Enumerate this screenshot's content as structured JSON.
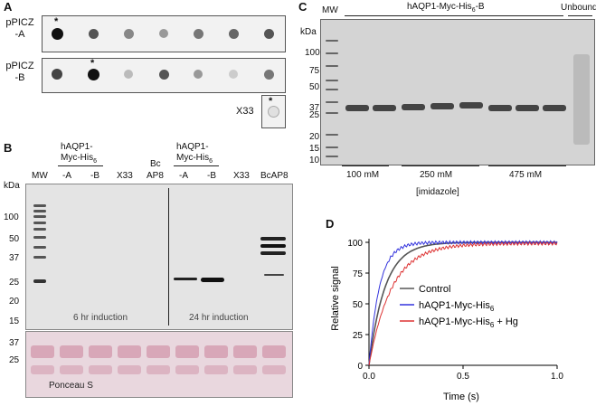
{
  "panels": {
    "a": "A",
    "b": "B",
    "c": "C",
    "d": "D"
  },
  "panel_a": {
    "row_a_label_1": "pPICZ",
    "row_a_label_2": "-A",
    "row_b_label_1": "pPICZ",
    "row_b_label_2": "-B",
    "control_label": "X33",
    "asterisk": "*"
  },
  "panel_b": {
    "kda": "kDa",
    "mw": "MW",
    "group1_line1": "hAQP1-",
    "group1_line2": "Myc-His",
    "group1_sub": "6",
    "group2_line1": "hAQP1-",
    "group2_line2": "Myc-His",
    "group2_sub": "6",
    "lanes": [
      "-A",
      "-B",
      "X33",
      "Bc",
      "AP8",
      "-A",
      "-B",
      "X33",
      "BcAP8"
    ],
    "markers": [
      "100",
      "50",
      "37",
      "25",
      "20",
      "15"
    ],
    "induction_6": "6 hr induction",
    "induction_24": "24 hr induction",
    "ponceau_markers": [
      "37",
      "25"
    ],
    "ponceau_label": "Ponceau S"
  },
  "panel_c": {
    "mw": "MW",
    "kda": "kDa",
    "title": "hAQP1-Myc-His",
    "title_sub": "6",
    "title_suffix": "-B",
    "unbound": "Unbound",
    "markers": [
      "100",
      "75",
      "50",
      "37",
      "25",
      "20",
      "15",
      "10"
    ],
    "conc": [
      "100 mM",
      "250 mM",
      "475 mM"
    ],
    "imidazole": "[imidazole]"
  },
  "chart_data": {
    "type": "line",
    "xlabel": "Time (s)",
    "ylabel": "Relative signal",
    "xlim": [
      0,
      1.0
    ],
    "ylim": [
      0,
      100
    ],
    "xticks": [
      "0.0",
      "0.5",
      "1.0"
    ],
    "yticks": [
      "0",
      "25",
      "50",
      "75",
      "100"
    ],
    "legend_position": "center-right",
    "series": [
      {
        "name": "Control",
        "color": "#555555",
        "tau": 0.085,
        "plateau": 100
      },
      {
        "name": "hAQP1-Myc-His6",
        "color": "#3333dd",
        "tau": 0.055,
        "plateau": 100
      },
      {
        "name": "hAQP1-Myc-His6 + Hg",
        "color": "#dd3333",
        "tau": 0.12,
        "plateau": 99
      }
    ],
    "legend": {
      "control": "Control",
      "s2_main": "hAQP1-Myc-His",
      "s2_sub": "6",
      "s3_main": "hAQP1-Myc-His",
      "s3_sub": "6",
      "s3_suffix": " + Hg"
    }
  }
}
